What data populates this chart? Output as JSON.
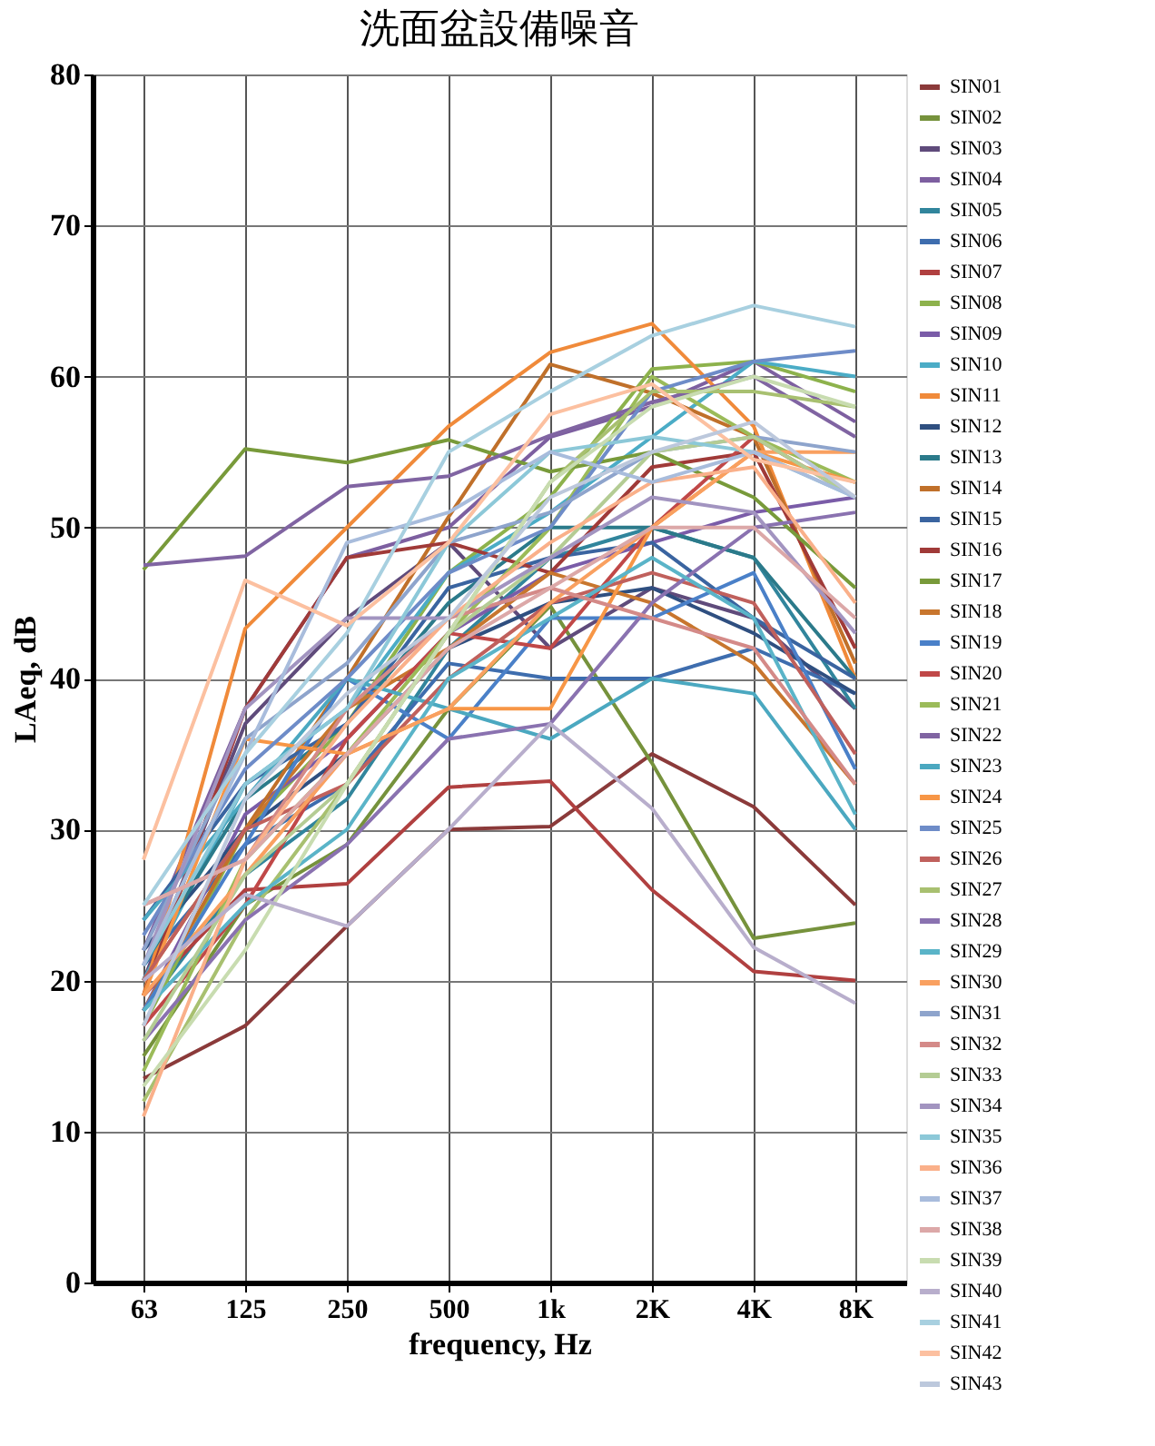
{
  "chart_data": {
    "type": "line",
    "title": "洗面盆設備噪音",
    "xlabel": "frequency, Hz",
    "ylabel": "LAeq, dB",
    "categories": [
      "63",
      "125",
      "250",
      "500",
      "1k",
      "2K",
      "4K",
      "8K"
    ],
    "ylim": [
      0,
      80
    ],
    "yticks": [
      0,
      10,
      20,
      30,
      40,
      50,
      60,
      70,
      80
    ],
    "grid": true,
    "legend": "right",
    "marker": "none",
    "line_style": "solid",
    "series": [
      {
        "name": "SIN01",
        "color": "#8b3a3a",
        "values": [
          13.5,
          17,
          23.6,
          30,
          30.2,
          35,
          31.5,
          25
        ]
      },
      {
        "name": "SIN02",
        "color": "#76923c",
        "values": [
          15,
          25,
          29,
          38,
          44.8,
          34.4,
          22.8,
          23.8
        ]
      },
      {
        "name": "SIN03",
        "color": "#5f4b7b",
        "values": [
          20,
          37,
          44,
          49,
          42,
          46,
          44,
          38
        ]
      },
      {
        "name": "SIN04",
        "color": "#7d5fa0",
        "values": [
          22,
          38,
          48,
          50,
          56,
          58,
          61,
          57
        ]
      },
      {
        "name": "SIN05",
        "color": "#31859c",
        "values": [
          18,
          27,
          32,
          42,
          48,
          50,
          48,
          38
        ]
      },
      {
        "name": "SIN06",
        "color": "#3e6dae",
        "values": [
          21,
          29,
          33,
          41,
          40,
          40,
          42,
          39
        ]
      },
      {
        "name": "SIN07",
        "color": "#b04040",
        "values": [
          19,
          26,
          26.4,
          32.8,
          33.2,
          26,
          20.6,
          20
        ]
      },
      {
        "name": "SIN08",
        "color": "#8db24c",
        "values": [
          17,
          30,
          37,
          47,
          52,
          60.5,
          61,
          59
        ]
      },
      {
        "name": "SIN09",
        "color": "#7a5ca8",
        "values": [
          18,
          31,
          36,
          43,
          47,
          49,
          51,
          52
        ]
      },
      {
        "name": "SIN10",
        "color": "#4bacc6",
        "values": [
          20,
          33,
          38,
          47,
          51,
          56,
          61,
          60
        ]
      },
      {
        "name": "SIN11",
        "color": "#f08a3a",
        "values": [
          19,
          43.3,
          50,
          56.7,
          61.6,
          63.5,
          56.7,
          40
        ]
      },
      {
        "name": "SIN12",
        "color": "#2f4f80",
        "values": [
          22,
          30,
          35,
          42,
          45,
          46,
          43,
          39
        ]
      },
      {
        "name": "SIN13",
        "color": "#2b7a8a",
        "values": [
          21,
          32,
          37,
          45,
          50,
          50,
          48,
          40
        ]
      },
      {
        "name": "SIN14",
        "color": "#c0702a",
        "values": [
          18,
          30,
          40,
          50.7,
          60.8,
          58.9,
          56,
          41
        ]
      },
      {
        "name": "SIN15",
        "color": "#3a64a0",
        "values": [
          24,
          33,
          37,
          46,
          48,
          49,
          44,
          40
        ]
      },
      {
        "name": "SIN16",
        "color": "#a03a38",
        "values": [
          19,
          38,
          48,
          49,
          47,
          54,
          55,
          42
        ]
      },
      {
        "name": "SIN17",
        "color": "#789a3a",
        "values": [
          47.2,
          55.2,
          54.3,
          55.8,
          53.7,
          55,
          52,
          46
        ]
      },
      {
        "name": "SIN18",
        "color": "#c8762e",
        "values": [
          20,
          30,
          38,
          42,
          47,
          45,
          41,
          33
        ]
      },
      {
        "name": "SIN19",
        "color": "#4a80c8",
        "values": [
          18,
          29,
          40,
          36,
          44,
          44,
          47,
          34
        ]
      },
      {
        "name": "SIN20",
        "color": "#c04848",
        "values": [
          17,
          25,
          36,
          43,
          42,
          50,
          56,
          52
        ]
      },
      {
        "name": "SIN21",
        "color": "#9bbb59",
        "values": [
          14,
          28,
          35,
          43,
          50,
          60,
          56,
          53
        ]
      },
      {
        "name": "SIN22",
        "color": "#8064a2",
        "values": [
          47.5,
          48.1,
          52.7,
          53.4,
          56.1,
          58.3,
          60,
          56
        ]
      },
      {
        "name": "SIN23",
        "color": "#4ba8c0",
        "values": [
          24,
          32,
          40,
          38,
          36,
          40,
          39,
          30
        ]
      },
      {
        "name": "SIN24",
        "color": "#f79646",
        "values": [
          19,
          36,
          35,
          38,
          38,
          50,
          55,
          53
        ]
      },
      {
        "name": "SIN25",
        "color": "#6e8cc8",
        "values": [
          23,
          34,
          40,
          47,
          50,
          59,
          61,
          61.7
        ]
      },
      {
        "name": "SIN26",
        "color": "#c0605c",
        "values": [
          20,
          30,
          33,
          40,
          45,
          47,
          45,
          35
        ]
      },
      {
        "name": "SIN27",
        "color": "#a8c070",
        "values": [
          12,
          24,
          33,
          43,
          53,
          59,
          59,
          58
        ]
      },
      {
        "name": "SIN28",
        "color": "#8a72b0",
        "values": [
          16,
          24,
          29,
          36,
          37,
          45,
          50,
          51
        ]
      },
      {
        "name": "SIN29",
        "color": "#5ab4c8",
        "values": [
          18,
          25,
          30,
          40,
          44,
          48,
          44,
          31
        ]
      },
      {
        "name": "SIN30",
        "color": "#f9a060",
        "values": [
          19,
          27,
          35,
          38,
          45,
          50,
          55,
          55
        ]
      },
      {
        "name": "SIN31",
        "color": "#8ea4cc",
        "values": [
          22,
          36,
          41,
          49,
          51,
          55,
          56,
          55
        ]
      },
      {
        "name": "SIN32",
        "color": "#d48a88",
        "values": [
          25,
          28,
          38,
          44,
          46,
          44,
          42,
          33
        ]
      },
      {
        "name": "SIN33",
        "color": "#b4cc94",
        "values": [
          16,
          27,
          33,
          43,
          48,
          55,
          56,
          52
        ]
      },
      {
        "name": "SIN34",
        "color": "#a294c0",
        "values": [
          21,
          38,
          44,
          44,
          48,
          52,
          51,
          43
        ]
      },
      {
        "name": "SIN35",
        "color": "#8cc8d8",
        "values": [
          21,
          33,
          38,
          49,
          55,
          56,
          55,
          52
        ]
      },
      {
        "name": "SIN36",
        "color": "#fab08a",
        "values": [
          11,
          28,
          37,
          44,
          49,
          53,
          54,
          45
        ]
      },
      {
        "name": "SIN37",
        "color": "#a8bcdc",
        "values": [
          21,
          35,
          49,
          51,
          55,
          53,
          55,
          52
        ]
      },
      {
        "name": "SIN38",
        "color": "#dca8a8",
        "values": [
          25,
          28,
          35,
          42,
          46,
          50,
          50,
          44
        ]
      },
      {
        "name": "SIN39",
        "color": "#c8dcb0",
        "values": [
          13,
          22,
          33,
          43,
          53,
          58,
          60,
          58
        ]
      },
      {
        "name": "SIN40",
        "color": "#b8aecc",
        "values": [
          20,
          25.7,
          23.6,
          30,
          37,
          31.4,
          22.2,
          18.5
        ]
      },
      {
        "name": "SIN41",
        "color": "#a8d0e0",
        "values": [
          25,
          35,
          43,
          55,
          59,
          62.7,
          64.7,
          63.3
        ]
      },
      {
        "name": "SIN42",
        "color": "#fcc0a0",
        "values": [
          28,
          46.5,
          43.5,
          49,
          57.5,
          59.5,
          54.5,
          53
        ]
      },
      {
        "name": "SIN43",
        "color": "#bcc8dc",
        "values": [
          17,
          32,
          39,
          44,
          52,
          55,
          57,
          52
        ]
      }
    ]
  }
}
